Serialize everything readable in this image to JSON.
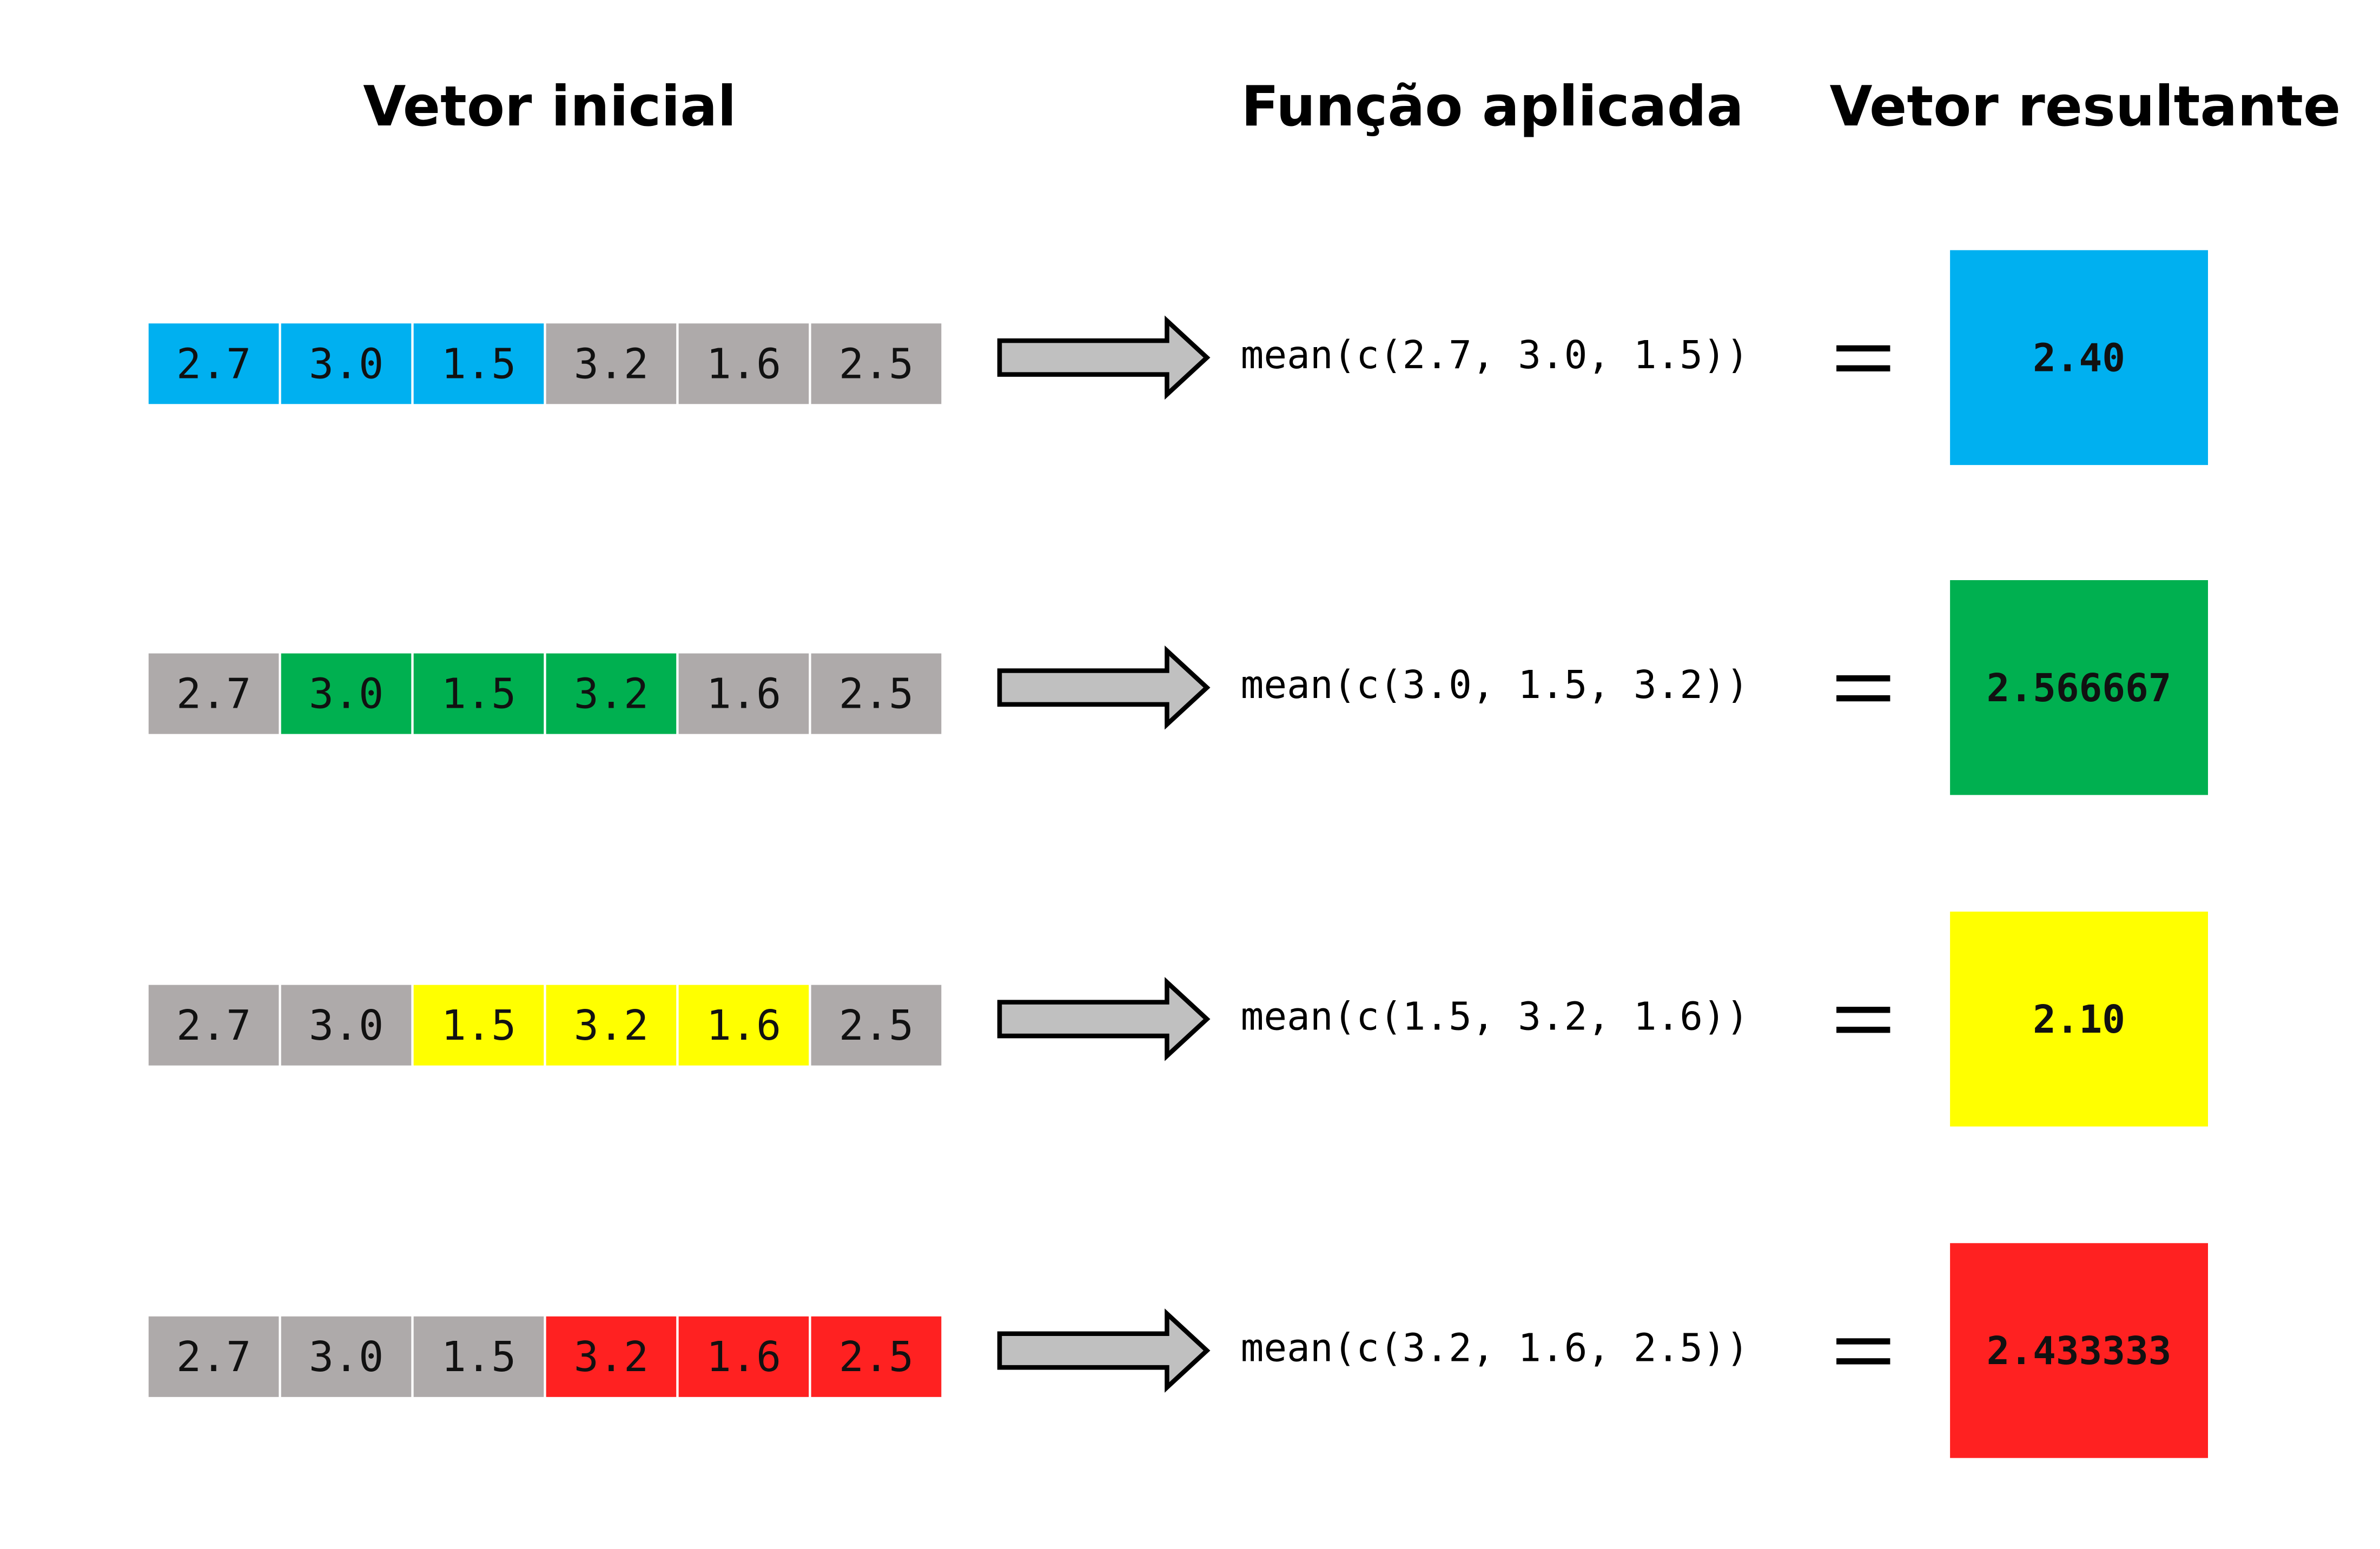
{
  "header": {
    "columns": [
      "Vetor inicial",
      "Função aplicada",
      "Vetor resultante"
    ]
  },
  "rows": [
    {
      "cells": [
        "2.7",
        "3.0",
        "1.5",
        "3.2",
        "1.6",
        "2.5"
      ],
      "cell_colors": [
        "#00b0f0",
        "#00b0f0",
        "#00b0f0",
        "#aeaaaa",
        "#aeaaaa",
        "#aeaaaa"
      ],
      "function": "mean(c(2.7, 3.0, 1.5))",
      "result": "2.40",
      "result_color": "#00b0f0"
    },
    {
      "cells": [
        "2.7",
        "3.0",
        "1.5",
        "3.2",
        "1.6",
        "2.5"
      ],
      "cell_colors": [
        "#aeaaaa",
        "#00b050",
        "#00b050",
        "#00b050",
        "#aeaaaa",
        "#aeaaaa"
      ],
      "function": "mean(c(3.0, 1.5, 3.2))",
      "result": "2.566667",
      "result_color": "#00b050"
    },
    {
      "cells": [
        "2.7",
        "3.0",
        "1.5",
        "3.2",
        "1.6",
        "2.5"
      ],
      "cell_colors": [
        "#aeaaaa",
        "#aeaaaa",
        "#ffff00",
        "#ffff00",
        "#ffff00",
        "#aeaaaa"
      ],
      "function": "mean(c(1.5, 3.2, 1.6))",
      "result": "2.10",
      "result_color": "#ffff00"
    },
    {
      "cells": [
        "2.7",
        "3.0",
        "1.5",
        "3.2",
        "1.6",
        "2.5"
      ],
      "cell_colors": [
        "#aeaaaa",
        "#aeaaaa",
        "#aeaaaa",
        "#ff2121",
        "#ff2121",
        "#ff2121"
      ],
      "function": "mean(c(3.2, 1.6, 2.5))",
      "result": "2.433333",
      "result_color": "#ff2121"
    }
  ]
}
